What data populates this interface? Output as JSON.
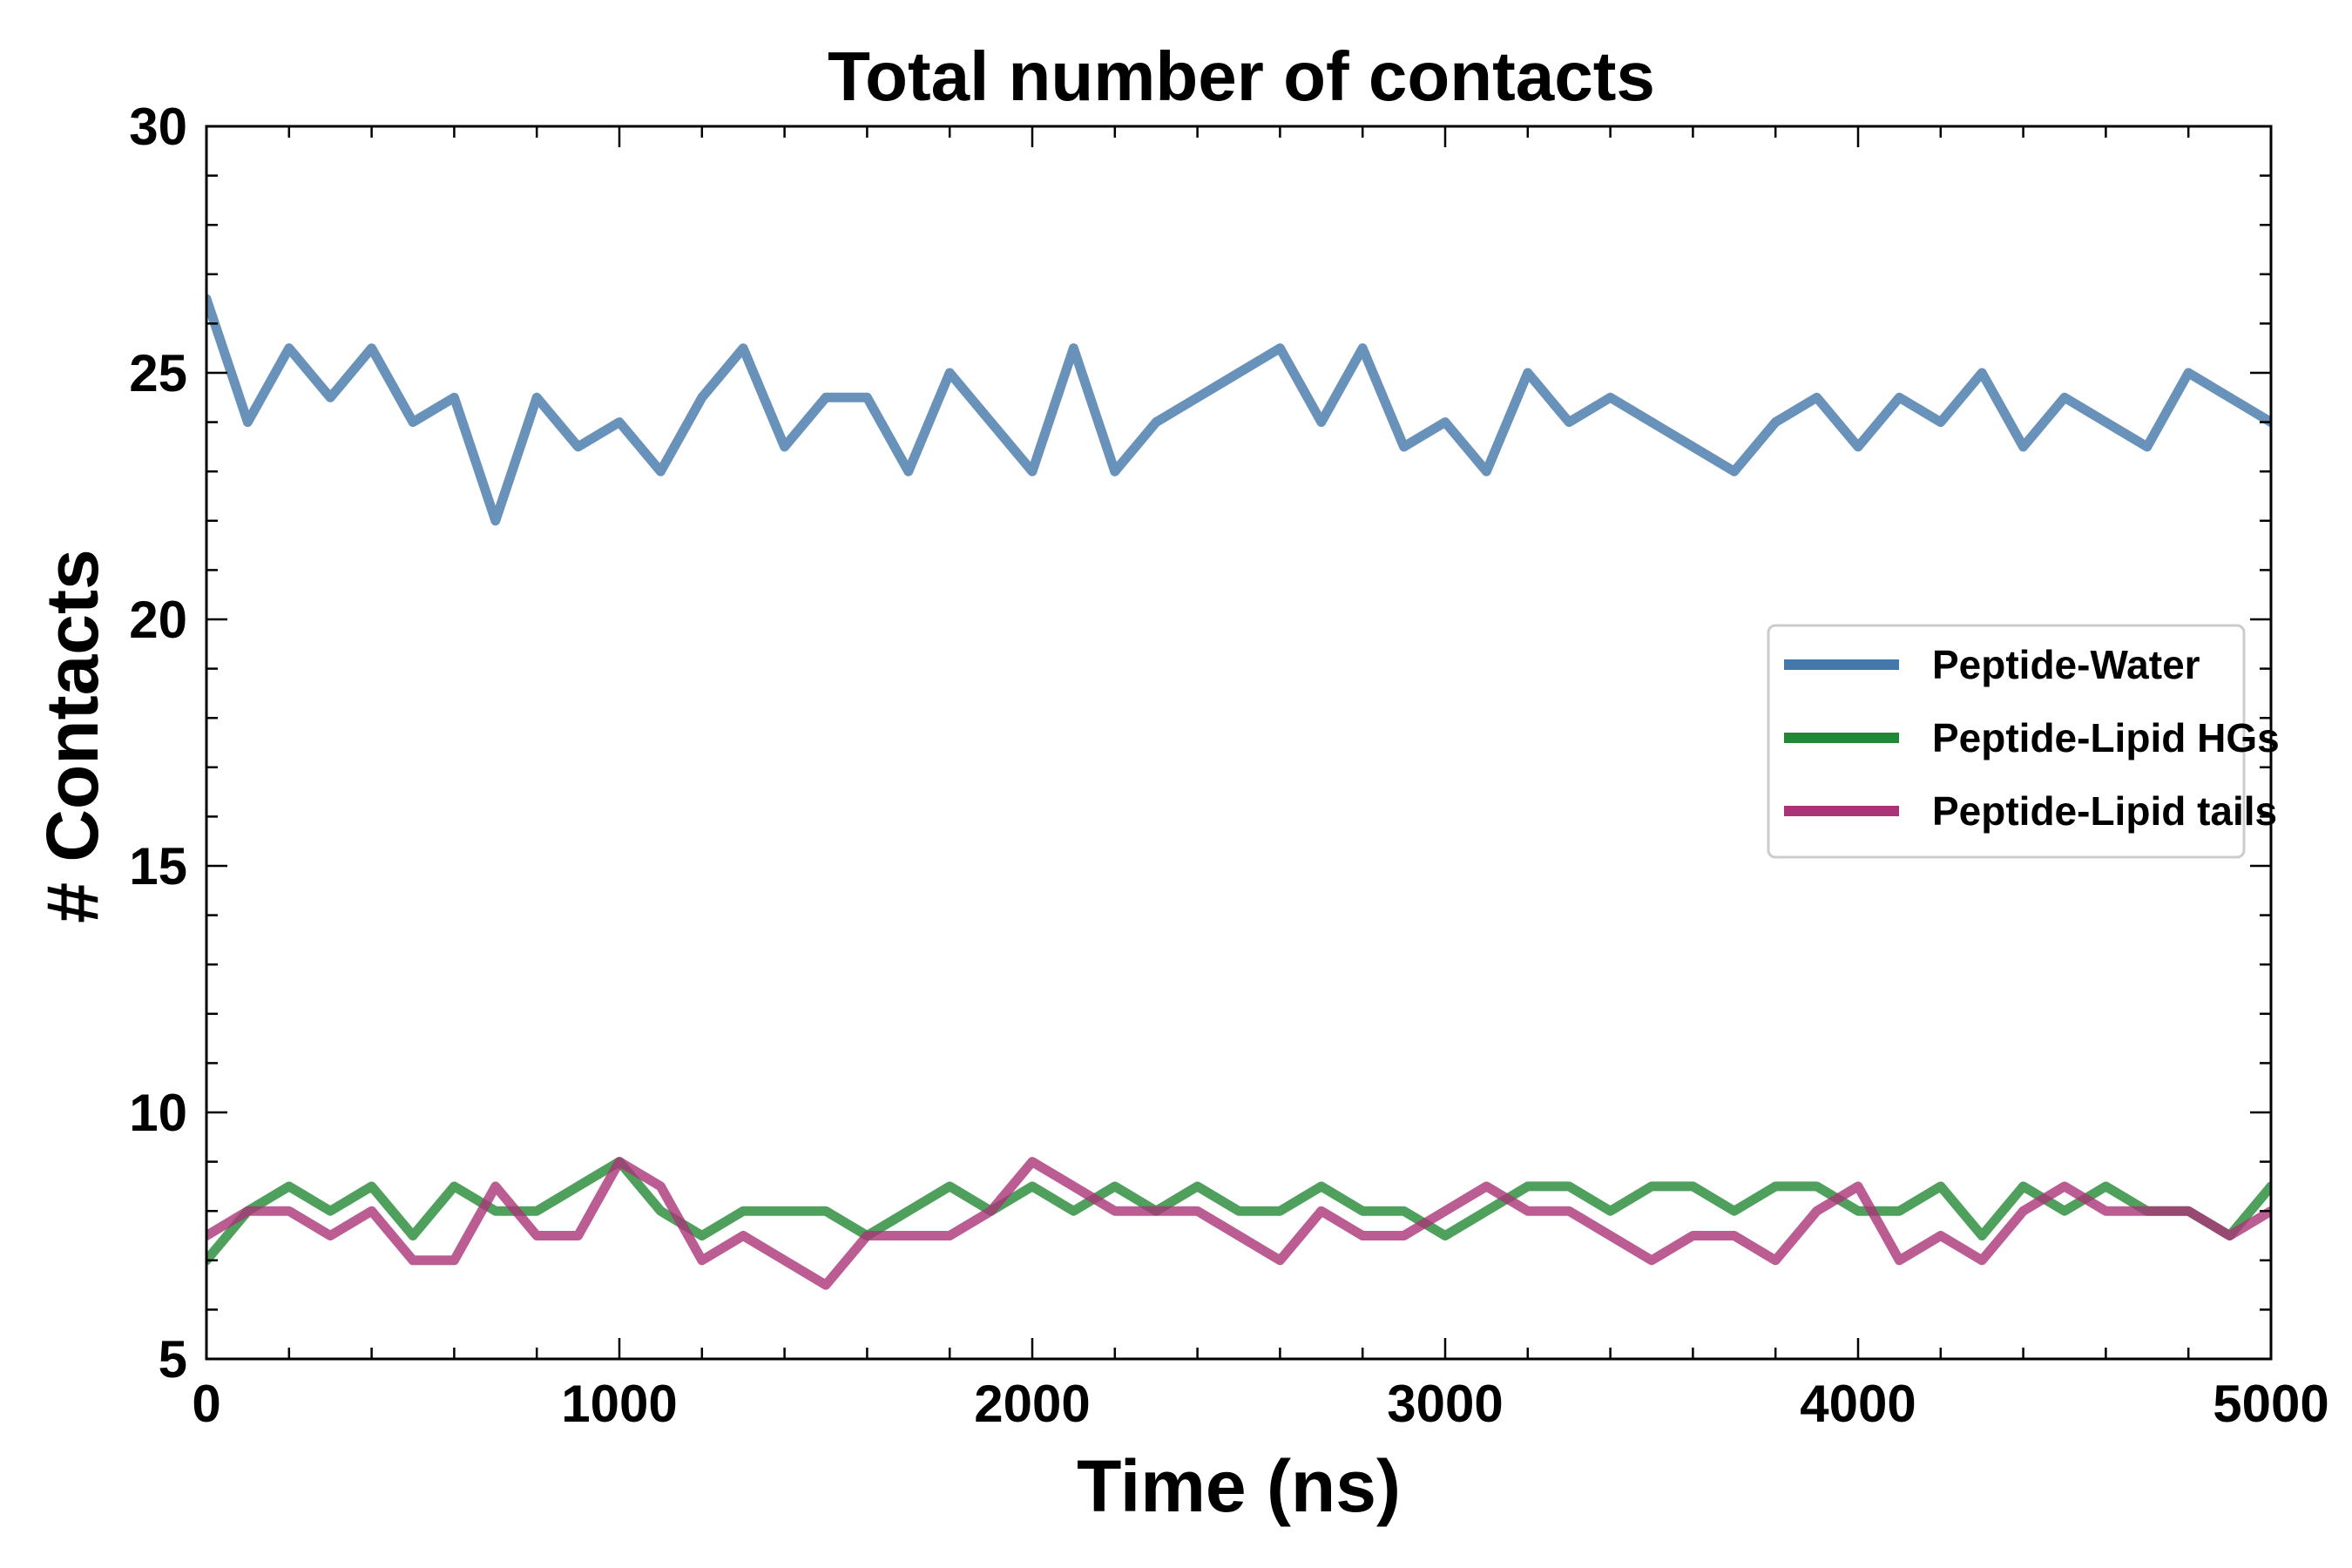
{
  "chart_data": {
    "type": "line",
    "title": "Total number of contacts",
    "xlabel": "Time (ns)",
    "ylabel": "# Contacts",
    "xlim": [
      0,
      5000
    ],
    "ylim": [
      5,
      30
    ],
    "xticks": [
      0,
      1000,
      2000,
      3000,
      4000,
      5000
    ],
    "yticks": [
      5,
      10,
      15,
      20,
      25,
      30
    ],
    "xtick_labels": [
      "0",
      "1000",
      "2000",
      "3000",
      "4000",
      "5000"
    ],
    "ytick_labels": [
      "5",
      "10",
      "15",
      "20",
      "25",
      "30"
    ],
    "grid": false,
    "legend_position": "center-right",
    "x": [
      0,
      100,
      200,
      300,
      400,
      500,
      600,
      700,
      800,
      900,
      1000,
      1100,
      1200,
      1300,
      1400,
      1500,
      1600,
      1700,
      1800,
      1900,
      2000,
      2100,
      2200,
      2300,
      2400,
      2500,
      2600,
      2700,
      2800,
      2900,
      3000,
      3100,
      3200,
      3300,
      3400,
      3500,
      3600,
      3700,
      3800,
      3900,
      4000,
      4100,
      4200,
      4300,
      4400,
      4500,
      4600,
      4700,
      4800,
      4900,
      5000
    ],
    "series": [
      {
        "name": "Peptide-Water",
        "color": "#4477aa",
        "values": [
          26.5,
          24.0,
          25.5,
          24.5,
          25.5,
          24.0,
          24.5,
          22.0,
          24.5,
          23.5,
          24.0,
          23.0,
          24.5,
          25.5,
          23.5,
          24.5,
          24.5,
          23.0,
          25.0,
          24.0,
          23.0,
          25.5,
          23.0,
          24.0,
          24.5,
          25.0,
          25.5,
          24.0,
          25.5,
          23.5,
          24.0,
          23.0,
          25.0,
          24.0,
          24.5,
          24.0,
          23.5,
          23.0,
          24.0,
          24.5,
          23.5,
          24.5,
          24.0,
          25.0,
          23.5,
          24.5,
          24.0,
          23.5,
          25.0,
          24.5,
          24.0
        ]
      },
      {
        "name": "Peptide-Lipid HGs",
        "color": "#228833",
        "values": [
          7.0,
          8.0,
          8.5,
          8.0,
          8.5,
          7.5,
          8.5,
          8.0,
          8.0,
          8.5,
          9.0,
          8.0,
          7.5,
          8.0,
          8.0,
          8.0,
          7.5,
          8.0,
          8.5,
          8.0,
          8.5,
          8.0,
          8.5,
          8.0,
          8.5,
          8.0,
          8.0,
          8.5,
          8.0,
          8.0,
          7.5,
          8.0,
          8.5,
          8.5,
          8.0,
          8.5,
          8.5,
          8.0,
          8.5,
          8.5,
          8.0,
          8.0,
          8.5,
          7.5,
          8.5,
          8.0,
          8.5,
          8.0,
          8.0,
          7.5,
          8.5
        ]
      },
      {
        "name": "Peptide-Lipid tails",
        "color": "#aa3377",
        "values": [
          7.5,
          8.0,
          8.0,
          7.5,
          8.0,
          7.0,
          7.0,
          8.5,
          7.5,
          7.5,
          9.0,
          8.5,
          7.0,
          7.5,
          7.0,
          6.5,
          7.5,
          7.5,
          7.5,
          8.0,
          9.0,
          8.5,
          8.0,
          8.0,
          8.0,
          7.5,
          7.0,
          8.0,
          7.5,
          7.5,
          8.0,
          8.5,
          8.0,
          8.0,
          7.5,
          7.0,
          7.5,
          7.5,
          7.0,
          8.0,
          8.5,
          7.0,
          7.5,
          7.0,
          8.0,
          8.5,
          8.0,
          8.0,
          8.0,
          7.5,
          8.0
        ]
      }
    ]
  }
}
